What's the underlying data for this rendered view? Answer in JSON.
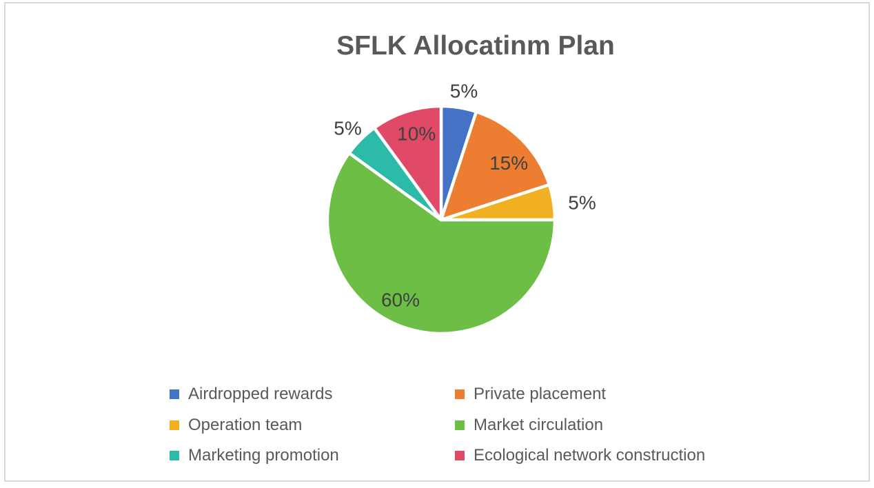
{
  "chart_data": {
    "type": "pie",
    "title": "SFLK Allocatinm Plan",
    "categories": [
      "Airdropped rewards",
      "Private placement",
      "Operation team",
      "Market circulation",
      "Marketing promotion",
      "Ecological network construction"
    ],
    "values": [
      5,
      15,
      5,
      60,
      5,
      10
    ],
    "data_labels": [
      "5%",
      "15%",
      "5%",
      "60%",
      "5%",
      "10%"
    ],
    "colors": [
      "#4472C4",
      "#ED7D31",
      "#F0B022",
      "#6CBE45",
      "#2CBAA9",
      "#E04A66"
    ],
    "slice_border_color": "#FFFFFF",
    "start_angle_deg": 0,
    "direction": "clockwise",
    "legend_position": "bottom",
    "legend_columns": 2
  },
  "styles": {
    "title_color": "#595959",
    "data_label_color": "#404040",
    "legend_text_color": "#595959",
    "canvas_border_color": "#D9D9D9",
    "background_color": "#FFFFFF"
  }
}
